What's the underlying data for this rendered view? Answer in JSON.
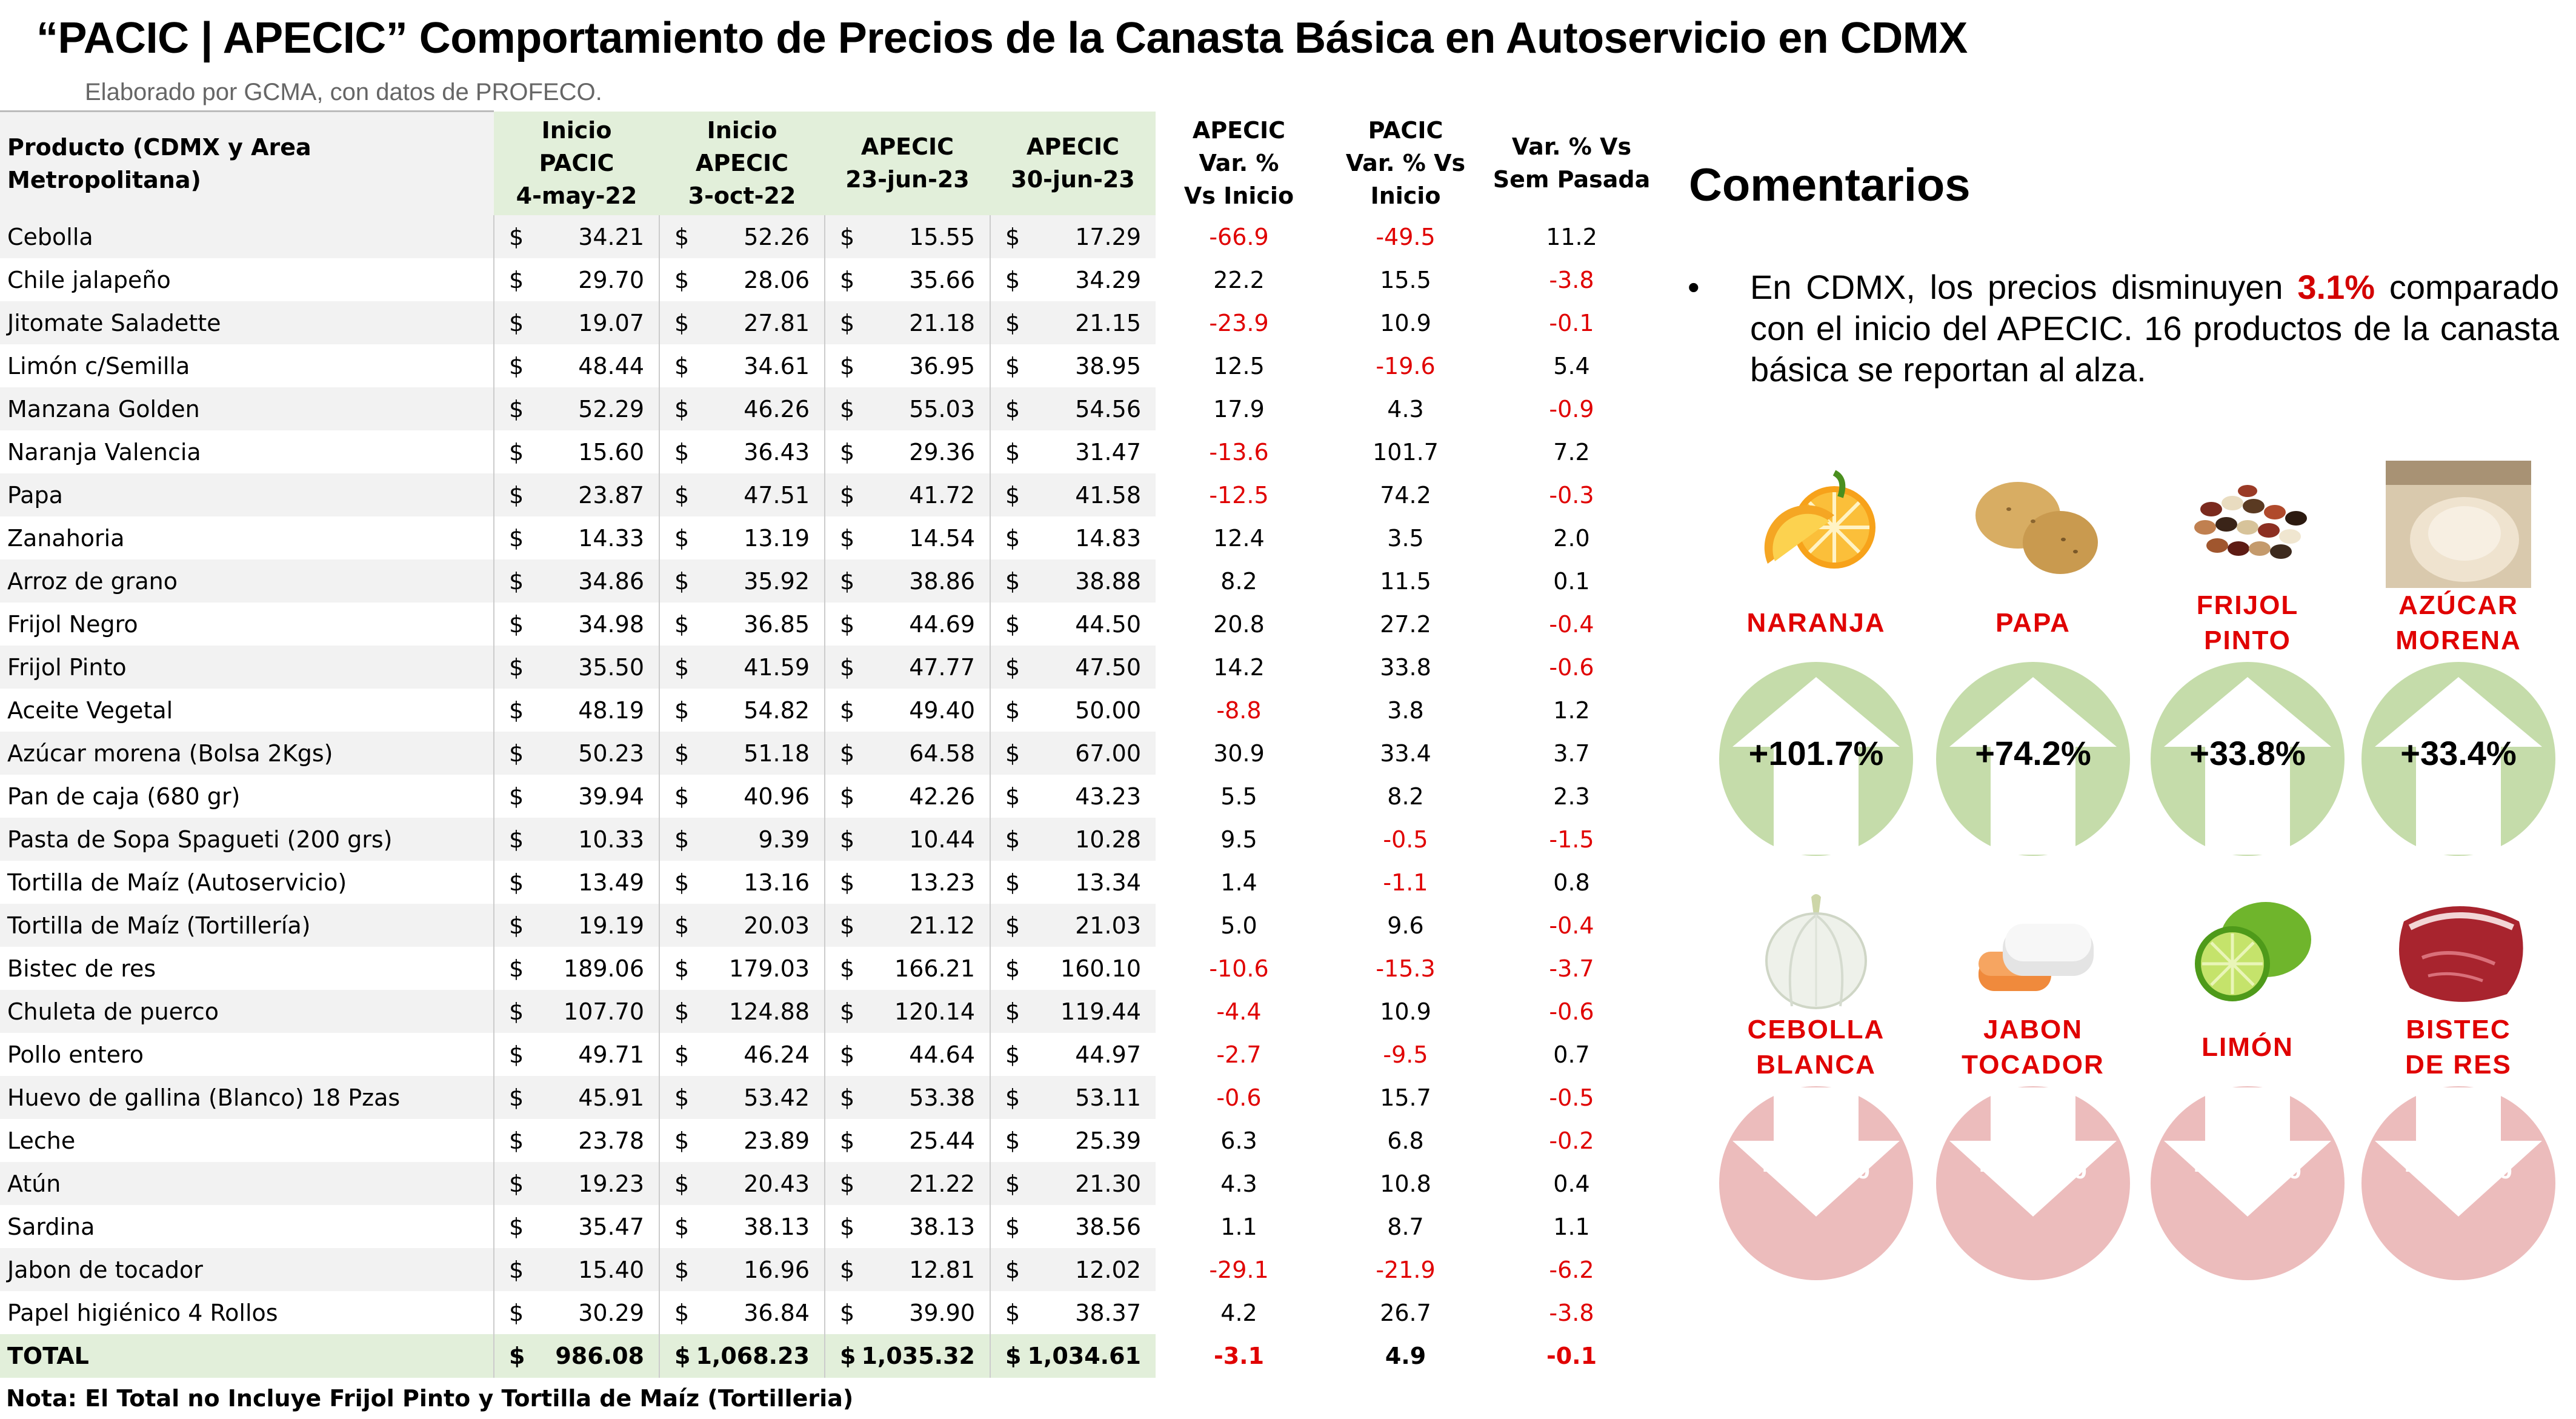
{
  "title": "“PACIC | APECIC” Comportamiento de Precios de la Canasta Básica en Autoservicio en CDMX",
  "subtitle": "Elaborado por GCMA, con datos de PROFECO.",
  "table": {
    "headers": {
      "product": "Producto (CDMX y Area Metropolitana)",
      "c1": [
        "Inicio",
        "PACIC",
        "4-may-22"
      ],
      "c2": [
        "Inicio",
        "APECIC",
        "3-oct-22"
      ],
      "c3": [
        "APECIC",
        "23-jun-23"
      ],
      "c4": [
        "APECIC",
        "30-jun-23"
      ],
      "c5": [
        "APECIC",
        "Var. %",
        "Vs  Inicio"
      ],
      "c6": [
        "PACIC",
        "Var. % Vs",
        "Inicio"
      ],
      "c7": [
        "Var. % Vs",
        "Sem Pasada"
      ]
    },
    "currency": "$",
    "rows": [
      {
        "name": "Cebolla",
        "v1": "34.21",
        "v2": "52.26",
        "v3": "15.55",
        "v4": "17.29",
        "p1": "-66.9",
        "p2": "-49.5",
        "p3": "11.2"
      },
      {
        "name": "Chile jalapeño",
        "v1": "29.70",
        "v2": "28.06",
        "v3": "35.66",
        "v4": "34.29",
        "p1": "22.2",
        "p2": "15.5",
        "p3": "-3.8"
      },
      {
        "name": "Jitomate Saladette",
        "v1": "19.07",
        "v2": "27.81",
        "v3": "21.18",
        "v4": "21.15",
        "p1": "-23.9",
        "p2": "10.9",
        "p3": "-0.1"
      },
      {
        "name": "Limón c/Semilla",
        "v1": "48.44",
        "v2": "34.61",
        "v3": "36.95",
        "v4": "38.95",
        "p1": "12.5",
        "p2": "-19.6",
        "p3": "5.4"
      },
      {
        "name": "Manzana Golden",
        "v1": "52.29",
        "v2": "46.26",
        "v3": "55.03",
        "v4": "54.56",
        "p1": "17.9",
        "p2": "4.3",
        "p3": "-0.9"
      },
      {
        "name": "Naranja Valencia",
        "v1": "15.60",
        "v2": "36.43",
        "v3": "29.36",
        "v4": "31.47",
        "p1": "-13.6",
        "p2": "101.7",
        "p3": "7.2"
      },
      {
        "name": "Papa",
        "v1": "23.87",
        "v2": "47.51",
        "v3": "41.72",
        "v4": "41.58",
        "p1": "-12.5",
        "p2": "74.2",
        "p3": "-0.3"
      },
      {
        "name": "Zanahoria",
        "v1": "14.33",
        "v2": "13.19",
        "v3": "14.54",
        "v4": "14.83",
        "p1": "12.4",
        "p2": "3.5",
        "p3": "2.0"
      },
      {
        "name": "Arroz de grano",
        "v1": "34.86",
        "v2": "35.92",
        "v3": "38.86",
        "v4": "38.88",
        "p1": "8.2",
        "p2": "11.5",
        "p3": "0.1"
      },
      {
        "name": "Frijol Negro",
        "v1": "34.98",
        "v2": "36.85",
        "v3": "44.69",
        "v4": "44.50",
        "p1": "20.8",
        "p2": "27.2",
        "p3": "-0.4"
      },
      {
        "name": "Frijol Pinto",
        "v1": "35.50",
        "v2": "41.59",
        "v3": "47.77",
        "v4": "47.50",
        "p1": "14.2",
        "p2": "33.8",
        "p3": "-0.6"
      },
      {
        "name": "Aceite Vegetal",
        "v1": "48.19",
        "v2": "54.82",
        "v3": "49.40",
        "v4": "50.00",
        "p1": "-8.8",
        "p2": "3.8",
        "p3": "1.2"
      },
      {
        "name": "Azúcar morena (Bolsa 2Kgs)",
        "v1": "50.23",
        "v2": "51.18",
        "v3": "64.58",
        "v4": "67.00",
        "p1": "30.9",
        "p2": "33.4",
        "p3": "3.7"
      },
      {
        "name": "Pan de caja (680 gr)",
        "v1": "39.94",
        "v2": "40.96",
        "v3": "42.26",
        "v4": "43.23",
        "p1": "5.5",
        "p2": "8.2",
        "p3": "2.3"
      },
      {
        "name": "Pasta de Sopa Spagueti (200 grs)",
        "v1": "10.33",
        "v2": "9.39",
        "v3": "10.44",
        "v4": "10.28",
        "p1": "9.5",
        "p2": "-0.5",
        "p3": "-1.5"
      },
      {
        "name": "Tortilla de Maíz (Autoservicio)",
        "v1": "13.49",
        "v2": "13.16",
        "v3": "13.23",
        "v4": "13.34",
        "p1": "1.4",
        "p2": "-1.1",
        "p3": "0.8"
      },
      {
        "name": "Tortilla de Maíz (Tortillería)",
        "v1": "19.19",
        "v2": "20.03",
        "v3": "21.12",
        "v4": "21.03",
        "p1": "5.0",
        "p2": "9.6",
        "p3": "-0.4"
      },
      {
        "name": "Bistec de res",
        "v1": "189.06",
        "v2": "179.03",
        "v3": "166.21",
        "v4": "160.10",
        "p1": "-10.6",
        "p2": "-15.3",
        "p3": "-3.7"
      },
      {
        "name": "Chuleta de puerco",
        "v1": "107.70",
        "v2": "124.88",
        "v3": "120.14",
        "v4": "119.44",
        "p1": "-4.4",
        "p2": "10.9",
        "p3": "-0.6"
      },
      {
        "name": "Pollo entero",
        "v1": "49.71",
        "v2": "46.24",
        "v3": "44.64",
        "v4": "44.97",
        "p1": "-2.7",
        "p2": "-9.5",
        "p3": "0.7"
      },
      {
        "name": "Huevo de gallina (Blanco) 18 Pzas",
        "v1": "45.91",
        "v2": "53.42",
        "v3": "53.38",
        "v4": "53.11",
        "p1": "-0.6",
        "p2": "15.7",
        "p3": "-0.5"
      },
      {
        "name": "Leche",
        "v1": "23.78",
        "v2": "23.89",
        "v3": "25.44",
        "v4": "25.39",
        "p1": "6.3",
        "p2": "6.8",
        "p3": "-0.2"
      },
      {
        "name": "Atún",
        "v1": "19.23",
        "v2": "20.43",
        "v3": "21.22",
        "v4": "21.30",
        "p1": "4.3",
        "p2": "10.8",
        "p3": "0.4"
      },
      {
        "name": "Sardina",
        "v1": "35.47",
        "v2": "38.13",
        "v3": "38.13",
        "v4": "38.56",
        "p1": "1.1",
        "p2": "8.7",
        "p3": "1.1"
      },
      {
        "name": "Jabon de tocador",
        "v1": "15.40",
        "v2": "16.96",
        "v3": "12.81",
        "v4": "12.02",
        "p1": "-29.1",
        "p2": "-21.9",
        "p3": "-6.2"
      },
      {
        "name": "Papel higiénico 4 Rollos",
        "v1": "30.29",
        "v2": "36.84",
        "v3": "39.90",
        "v4": "38.37",
        "p1": "4.2",
        "p2": "26.7",
        "p3": "-3.8"
      }
    ],
    "total": {
      "name": "TOTAL",
      "v1": "986.08",
      "v2": "1,068.23",
      "v3": "1,035.32",
      "v4": "1,034.61",
      "p1": "-3.1",
      "p2": "4.9",
      "p3": "-0.1"
    }
  },
  "note": "Nota: El Total no Incluye Frijol Pinto y Tortilla de Maíz (Tortilleria)",
  "comments": {
    "title": "Comentarios",
    "bullet": "•",
    "text_before": "En CDMX, los precios disminuyen ",
    "highlight": "3.1%",
    "text_after": " comparado con el inicio del APECIC. 16 productos de la canasta básica se reportan al alza."
  },
  "colors": {
    "up_badge": "#c5dcaa",
    "down_badge": "#ecbcbc",
    "negative_text": "#e00000",
    "highlight_text": "#d30000",
    "header_green": "#e2efda"
  },
  "increases": [
    {
      "label": "NARANJA",
      "value": "+101.7%",
      "icon": "orange-icon"
    },
    {
      "label": "PAPA",
      "value": "+74.2%",
      "icon": "potato-icon"
    },
    {
      "label": "FRIJOL\nPINTO",
      "value": "+33.8%",
      "icon": "beans-icon"
    },
    {
      "label": "AZÚCAR\nMORENA",
      "value": "+33.4%",
      "icon": "sugar-icon"
    }
  ],
  "decreases": [
    {
      "label": "CEBOLLA\nBLANCA",
      "value": "-49.5%",
      "icon": "onion-icon"
    },
    {
      "label": "JABON\nTOCADOR",
      "value": "-21.9%",
      "icon": "soap-icon"
    },
    {
      "label": "LIMÓN",
      "value": "-19.6%",
      "icon": "lime-icon"
    },
    {
      "label": "BISTEC\nDE RES",
      "value": "-15.3%",
      "icon": "steak-icon"
    }
  ]
}
